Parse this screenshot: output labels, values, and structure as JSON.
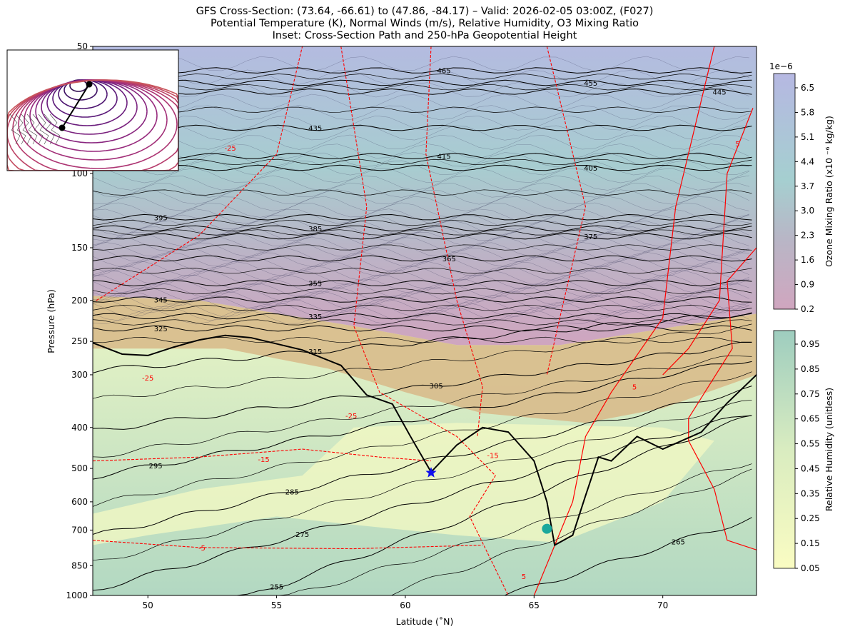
{
  "chart_data": {
    "type": "contour",
    "title_lines": [
      "GFS Cross-Section: (73.64, -66.61) to (47.86, -84.17) – Valid: 2026-02-05 03:00Z, (F027)",
      "Potential Temperature (K), Normal Winds (m/s), Relative Humidity, O3 Mixing Ratio",
      "Inset: Cross-Section Path and 250-hPa Geopotential Height"
    ],
    "xlabel": "Latitude (˚N)",
    "ylabel": "Pressure (hPa)",
    "xlim": [
      47.86,
      73.64
    ],
    "ylim": [
      1000,
      50
    ],
    "yscale": "log",
    "xticks": [
      50,
      55,
      60,
      65,
      70
    ],
    "yticks": [
      50,
      100,
      150,
      200,
      250,
      300,
      400,
      500,
      600,
      700,
      850,
      1000
    ],
    "theta_labels": [
      {
        "text": "465",
        "lat": 61.5,
        "p": 57
      },
      {
        "text": "455",
        "lat": 67.2,
        "p": 61
      },
      {
        "text": "445",
        "lat": 72.2,
        "p": 64
      },
      {
        "text": "435",
        "lat": 56.5,
        "p": 78
      },
      {
        "text": "415",
        "lat": 61.5,
        "p": 91
      },
      {
        "text": "405",
        "lat": 67.2,
        "p": 97
      },
      {
        "text": "395",
        "lat": 50.5,
        "p": 127
      },
      {
        "text": "385",
        "lat": 56.5,
        "p": 135
      },
      {
        "text": "375",
        "lat": 67.2,
        "p": 141
      },
      {
        "text": "365",
        "lat": 61.7,
        "p": 159
      },
      {
        "text": "355",
        "lat": 56.5,
        "p": 182
      },
      {
        "text": "345",
        "lat": 50.5,
        "p": 199
      },
      {
        "text": "335",
        "lat": 56.5,
        "p": 218
      },
      {
        "text": "325",
        "lat": 50.5,
        "p": 233
      },
      {
        "text": "315",
        "lat": 56.5,
        "p": 264
      },
      {
        "text": "305",
        "lat": 61.2,
        "p": 318
      },
      {
        "text": "295",
        "lat": 50.3,
        "p": 492
      },
      {
        "text": "285",
        "lat": 55.6,
        "p": 567
      },
      {
        "text": "275",
        "lat": 56.0,
        "p": 715
      },
      {
        "text": "265",
        "lat": 70.6,
        "p": 745
      },
      {
        "text": "255",
        "lat": 55.0,
        "p": 952
      }
    ],
    "wind_labels": [
      {
        "text": "-25",
        "lat": 53.2,
        "p": 87
      },
      {
        "text": "-25",
        "lat": 50.0,
        "p": 305
      },
      {
        "text": "-25",
        "lat": 57.9,
        "p": 375
      },
      {
        "text": "-15",
        "lat": 54.5,
        "p": 475
      },
      {
        "text": "-15",
        "lat": 63.4,
        "p": 465
      },
      {
        "text": "-5",
        "lat": 52.1,
        "p": 770
      },
      {
        "text": "5",
        "lat": 72.9,
        "p": 85
      },
      {
        "text": "5",
        "lat": 68.9,
        "p": 320
      },
      {
        "text": "5",
        "lat": 64.6,
        "p": 900
      }
    ],
    "markers": [
      {
        "type": "star",
        "lat": 61.0,
        "p": 512,
        "color": "#1010ee"
      },
      {
        "type": "circle",
        "lat": 65.5,
        "p": 695,
        "color": "#1aa89c"
      }
    ],
    "colorbars": [
      {
        "label": "Ozone Mixing Ratio (x10 ⁻⁶ kg/kg)",
        "offset": "1e−6",
        "ticks": [
          "6.5",
          "5.8",
          "5.1",
          "4.4",
          "3.7",
          "3.0",
          "2.3",
          "1.6",
          "0.9",
          "0.2"
        ],
        "colors": [
          "#b6b8e2",
          "#a5cdd0",
          "#c3a5bf"
        ]
      },
      {
        "label": "Relative Humidity (unitless)",
        "ticks": [
          "0.95",
          "0.85",
          "0.75",
          "0.65",
          "0.55",
          "0.45",
          "0.35",
          "0.25",
          "0.15",
          "0.05"
        ],
        "colors": [
          "#9ecdbf",
          "#d9ecc0",
          "#fafcc2"
        ]
      }
    ]
  }
}
